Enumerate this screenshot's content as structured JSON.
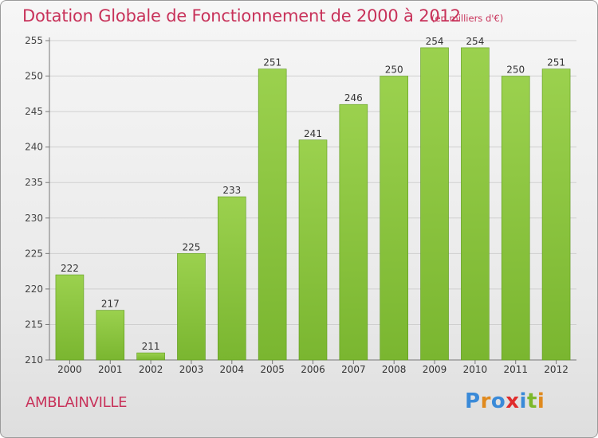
{
  "page": {
    "title": "Dotation Globale de Fonctionnement de 2000 à 2012",
    "unit_note": "(en milliers d'€)",
    "commune": "AMBLAINVILLE",
    "logo": {
      "text": "Proxiti",
      "letters": [
        {
          "ch": "P",
          "color": "#3a8ad8"
        },
        {
          "ch": "r",
          "color": "#e08a1e"
        },
        {
          "ch": "o",
          "color": "#3a8ad8"
        },
        {
          "ch": "x",
          "color": "#e02c2c"
        },
        {
          "ch": "i",
          "color": "#3a8ad8"
        },
        {
          "ch": "t",
          "color": "#7cb82a"
        },
        {
          "ch": "i",
          "color": "#e08a1e"
        }
      ]
    }
  },
  "chart_data": {
    "type": "bar",
    "title": "Dotation Globale de Fonctionnement de 2000 à 2012",
    "subtitle": "(en milliers d'€)",
    "categories": [
      "2000",
      "2001",
      "2002",
      "2003",
      "2004",
      "2005",
      "2006",
      "2007",
      "2008",
      "2009",
      "2010",
      "2011",
      "2012"
    ],
    "values": [
      222,
      217,
      211,
      225,
      233,
      251,
      241,
      246,
      250,
      254,
      254,
      250,
      251
    ],
    "data_labels": [
      "222",
      "217",
      "211",
      "225",
      "233",
      "251",
      "241",
      "246",
      "250",
      "254",
      "254",
      "250",
      "251"
    ],
    "ylim": [
      210,
      255
    ],
    "yticks": [
      210,
      215,
      220,
      225,
      230,
      235,
      240,
      245,
      250,
      255
    ],
    "grid": true,
    "bar_color": "#7ab630",
    "bar_color_top": "#9bd14e",
    "text_color": "#c8325a"
  }
}
